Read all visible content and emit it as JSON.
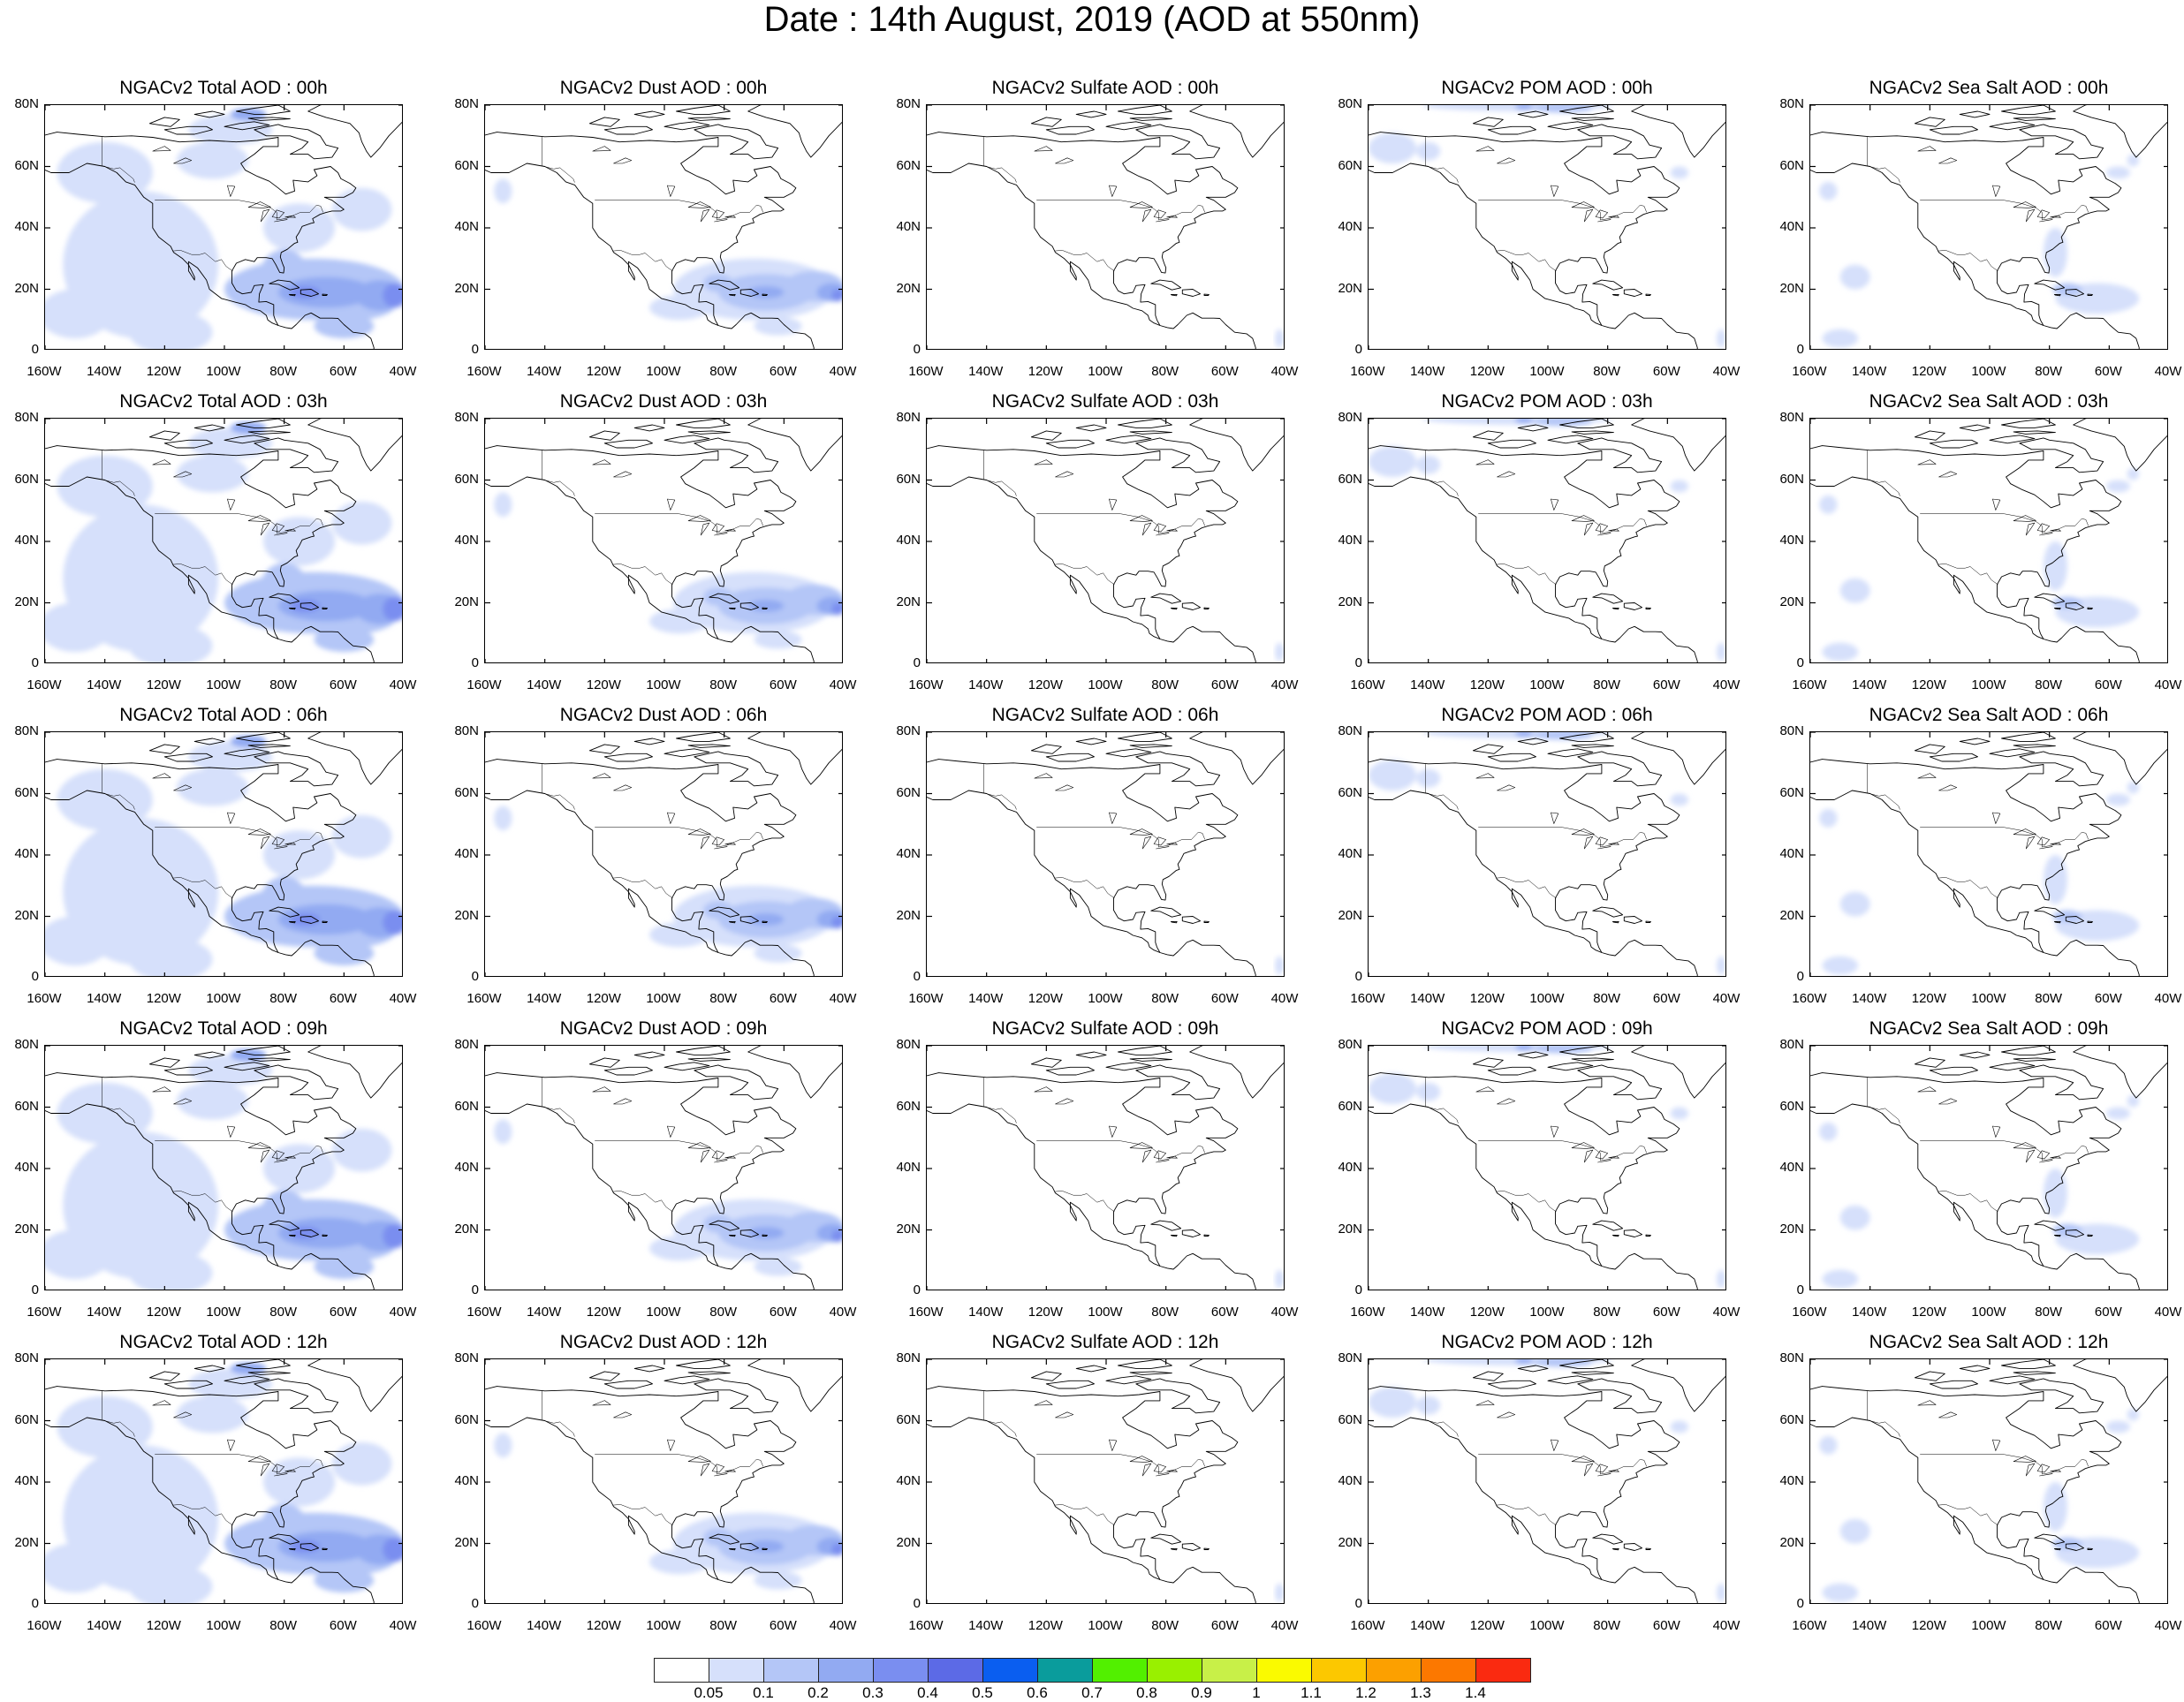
{
  "title": "Date : 14th August, 2019 (AOD at 550nm)",
  "map_axes": {
    "lon_range": [
      -160,
      -40
    ],
    "lat_range": [
      0,
      80
    ],
    "x_tick_labels": [
      "160W",
      "140W",
      "120W",
      "100W",
      "80W",
      "60W",
      "40W"
    ],
    "y_tick_labels": [
      "0",
      "20N",
      "40N",
      "60N",
      "80N"
    ],
    "projection": "cylindrical-equidistant",
    "coastlines": true
  },
  "panels": [
    {
      "row": 0,
      "col": 0,
      "title": "NGACv2 Total AOD : 00h",
      "field": "total"
    },
    {
      "row": 0,
      "col": 1,
      "title": "NGACv2 Dust AOD : 00h",
      "field": "dust"
    },
    {
      "row": 0,
      "col": 2,
      "title": "NGACv2 Sulfate AOD : 00h",
      "field": "sulfate"
    },
    {
      "row": 0,
      "col": 3,
      "title": "NGACv2 POM AOD : 00h",
      "field": "pom"
    },
    {
      "row": 0,
      "col": 4,
      "title": "NGACv2 Sea Salt AOD : 00h",
      "field": "seasalt"
    },
    {
      "row": 1,
      "col": 0,
      "title": "NGACv2 Total AOD : 03h",
      "field": "total"
    },
    {
      "row": 1,
      "col": 1,
      "title": "NGACv2 Dust AOD : 03h",
      "field": "dust"
    },
    {
      "row": 1,
      "col": 2,
      "title": "NGACv2 Sulfate AOD : 03h",
      "field": "sulfate"
    },
    {
      "row": 1,
      "col": 3,
      "title": "NGACv2 POM AOD : 03h",
      "field": "pom"
    },
    {
      "row": 1,
      "col": 4,
      "title": "NGACv2 Sea Salt AOD : 03h",
      "field": "seasalt"
    },
    {
      "row": 2,
      "col": 0,
      "title": "NGACv2 Total AOD : 06h",
      "field": "total"
    },
    {
      "row": 2,
      "col": 1,
      "title": "NGACv2 Dust AOD : 06h",
      "field": "dust"
    },
    {
      "row": 2,
      "col": 2,
      "title": "NGACv2 Sulfate AOD : 06h",
      "field": "sulfate"
    },
    {
      "row": 2,
      "col": 3,
      "title": "NGACv2 POM AOD : 06h",
      "field": "pom"
    },
    {
      "row": 2,
      "col": 4,
      "title": "NGACv2 Sea Salt AOD : 06h",
      "field": "seasalt"
    },
    {
      "row": 3,
      "col": 0,
      "title": "NGACv2 Total AOD : 09h",
      "field": "total"
    },
    {
      "row": 3,
      "col": 1,
      "title": "NGACv2 Dust AOD : 09h",
      "field": "dust"
    },
    {
      "row": 3,
      "col": 2,
      "title": "NGACv2 Sulfate AOD : 09h",
      "field": "sulfate"
    },
    {
      "row": 3,
      "col": 3,
      "title": "NGACv2 POM AOD : 09h",
      "field": "pom"
    },
    {
      "row": 3,
      "col": 4,
      "title": "NGACv2 Sea Salt  AOD : 09h",
      "field": "seasalt"
    },
    {
      "row": 4,
      "col": 0,
      "title": "NGACv2 Total AOD  : 12h",
      "field": "total"
    },
    {
      "row": 4,
      "col": 1,
      "title": "NGACv2 Dust AOD : 12h",
      "field": "dust"
    },
    {
      "row": 4,
      "col": 2,
      "title": "NGACv2 Sulfate AOD : 12h",
      "field": "sulfate"
    },
    {
      "row": 4,
      "col": 3,
      "title": "NGACv2 POM  AOD : 12h",
      "field": "pom"
    },
    {
      "row": 4,
      "col": 4,
      "title": "NGACv2 Sea Salt  AOD : 12h",
      "field": "seasalt"
    }
  ],
  "colorbar": {
    "levels": [
      "0.05",
      "0.1",
      "0.2",
      "0.3",
      "0.4",
      "0.5",
      "0.6",
      "0.7",
      "0.8",
      "0.9",
      "1",
      "1.1",
      "1.2",
      "1.3",
      "1.4"
    ],
    "colors": [
      "#ffffff",
      "#d6e0fb",
      "#b4c6f7",
      "#92aaf2",
      "#7a8ef0",
      "#5c6ae6",
      "#0a5ef0",
      "#0a9c9c",
      "#52f000",
      "#99f000",
      "#c8f048",
      "#fafa00",
      "#fcc800",
      "#fca000",
      "#fc7800",
      "#fa2a10"
    ]
  }
}
